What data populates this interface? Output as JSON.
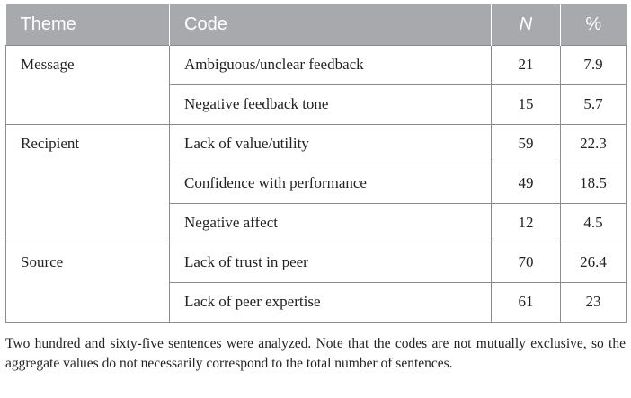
{
  "table": {
    "headers": {
      "theme": "Theme",
      "code": "Code",
      "n": "N",
      "percent": "%"
    },
    "groups": [
      {
        "theme": "Message",
        "rows": [
          {
            "code": "Ambiguous/unclear feedback",
            "n": "21",
            "percent": "7.9"
          },
          {
            "code": "Negative feedback tone",
            "n": "15",
            "percent": "5.7"
          }
        ]
      },
      {
        "theme": "Recipient",
        "rows": [
          {
            "code": "Lack of value/utility",
            "n": "59",
            "percent": "22.3"
          },
          {
            "code": "Confidence with performance",
            "n": "49",
            "percent": "18.5"
          },
          {
            "code": "Negative affect",
            "n": "12",
            "percent": "4.5"
          }
        ]
      },
      {
        "theme": "Source",
        "rows": [
          {
            "code": "Lack of trust in peer",
            "n": "70",
            "percent": "26.4"
          },
          {
            "code": "Lack of peer expertise",
            "n": "61",
            "percent": "23"
          }
        ]
      }
    ]
  },
  "footnote": "Two hundred and sixty-five sentences were analyzed. Note that the codes are not mutually exclusive, so the aggregate values do not necessarily correspond to the total number of sentences.",
  "colors": {
    "header_bg": "#a7a9ac",
    "header_text": "#ffffff",
    "border": "#8c8c8c"
  }
}
